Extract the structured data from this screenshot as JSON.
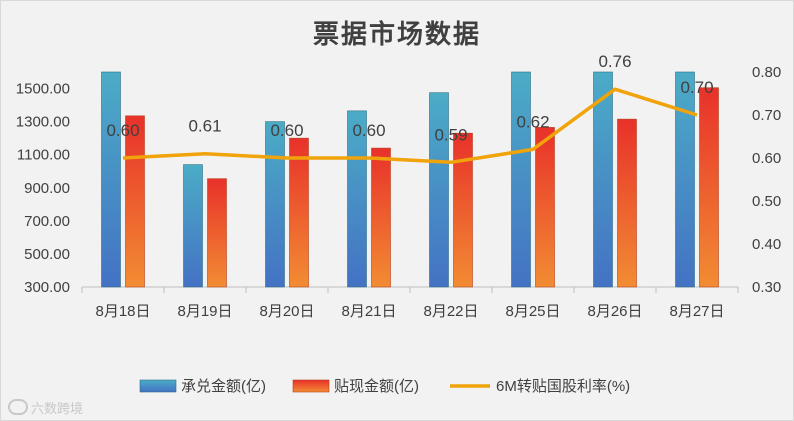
{
  "chart_data": {
    "type": "bar",
    "title": "票据市场数据",
    "categories": [
      "8月18日",
      "8月19日",
      "8月20日",
      "8月21日",
      "8月22日",
      "8月25日",
      "8月26日",
      "8月27日"
    ],
    "series": [
      {
        "name": "承兑金额(亿)",
        "type": "bar",
        "axis": "left",
        "values": [
          1600,
          1040,
          1300,
          1365,
          1475,
          1600,
          1600,
          1600
        ]
      },
      {
        "name": "贴现金额(亿)",
        "type": "bar",
        "axis": "left",
        "values": [
          1335,
          955,
          1200,
          1140,
          1230,
          1265,
          1315,
          1505
        ]
      },
      {
        "name": "6M转贴国股利率(%)",
        "type": "line",
        "axis": "right",
        "values": [
          0.6,
          0.61,
          0.6,
          0.6,
          0.59,
          0.62,
          0.76,
          0.7
        ],
        "labels": [
          "0.60",
          "0.61",
          "0.60",
          "0.60",
          "0.59",
          "0.62",
          "0.76",
          "0.70"
        ]
      }
    ],
    "y_left": {
      "min": 300,
      "max": 1600,
      "ticks": [
        "300.00",
        "500.00",
        "700.00",
        "900.00",
        "1100.00",
        "1300.00",
        "1500.00"
      ],
      "tick_values": [
        300,
        500,
        700,
        900,
        1100,
        1300,
        1500
      ]
    },
    "y_right": {
      "min": 0.3,
      "max": 0.8,
      "ticks": [
        "0.30",
        "0.40",
        "0.50",
        "0.60",
        "0.70",
        "0.80"
      ],
      "tick_values": [
        0.3,
        0.4,
        0.5,
        0.6,
        0.7,
        0.8
      ]
    },
    "grid": false,
    "legend_position": "bottom",
    "colors": {
      "acceptance_top": "#4bacc6",
      "acceptance_bottom": "#4472c4",
      "discount_top": "#e8312a",
      "discount_bottom": "#f28c33",
      "rate_line": "#f0a30a"
    }
  },
  "watermark": "六数跨境"
}
